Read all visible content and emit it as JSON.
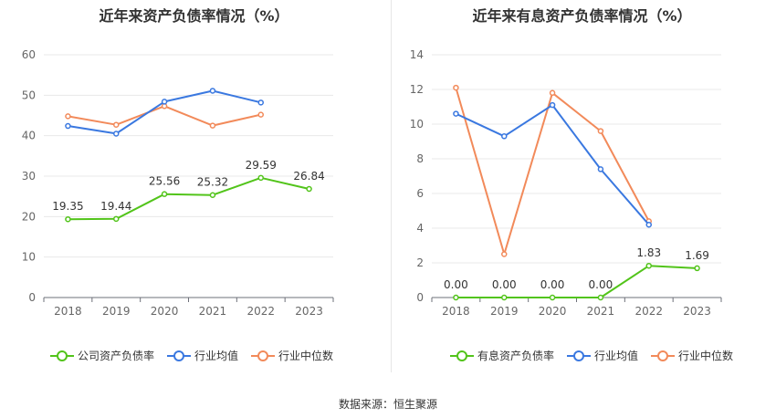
{
  "source_text": "数据来源：恒生聚源",
  "chart_data": [
    {
      "type": "line",
      "title": "近年来资产负债率情况（%）",
      "categories": [
        "2018",
        "2019",
        "2020",
        "2021",
        "2022",
        "2023"
      ],
      "ylim": [
        0,
        60
      ],
      "yticks": [
        0,
        10,
        20,
        30,
        40,
        50,
        60
      ],
      "grid": true,
      "legend_position": "bottom-center",
      "series": [
        {
          "name": "公司资产负债率",
          "color": "#52c41a",
          "values": [
            19.35,
            19.44,
            25.56,
            25.32,
            29.59,
            26.84
          ],
          "labels": [
            "19.35",
            "19.44",
            "25.56",
            "25.32",
            "29.59",
            "26.84"
          ]
        },
        {
          "name": "行业均值",
          "color": "#3a78e0",
          "values": [
            42.4,
            40.5,
            48.4,
            51.1,
            48.2,
            null
          ],
          "labels": null
        },
        {
          "name": "行业中位数",
          "color": "#f28a5a",
          "values": [
            44.8,
            42.7,
            47.3,
            42.5,
            45.2,
            null
          ],
          "labels": null
        }
      ]
    },
    {
      "type": "line",
      "title": "近年来有息资产负债率情况（%）",
      "categories": [
        "2018",
        "2019",
        "2020",
        "2021",
        "2022",
        "2023"
      ],
      "ylim": [
        0,
        14
      ],
      "yticks": [
        0,
        2,
        4,
        6,
        8,
        10,
        12,
        14
      ],
      "grid": true,
      "legend_position": "bottom-center",
      "series": [
        {
          "name": "有息资产负债率",
          "color": "#52c41a",
          "values": [
            0.0,
            0.0,
            0.0,
            0.0,
            1.83,
            1.69
          ],
          "labels": [
            "0.00",
            "0.00",
            "0.00",
            "0.00",
            "1.83",
            "1.69"
          ]
        },
        {
          "name": "行业均值",
          "color": "#3a78e0",
          "values": [
            10.6,
            9.3,
            11.1,
            7.4,
            4.2,
            null
          ],
          "labels": null
        },
        {
          "name": "行业中位数",
          "color": "#f28a5a",
          "values": [
            12.1,
            2.5,
            11.8,
            9.6,
            4.4,
            null
          ],
          "labels": null
        }
      ]
    }
  ]
}
